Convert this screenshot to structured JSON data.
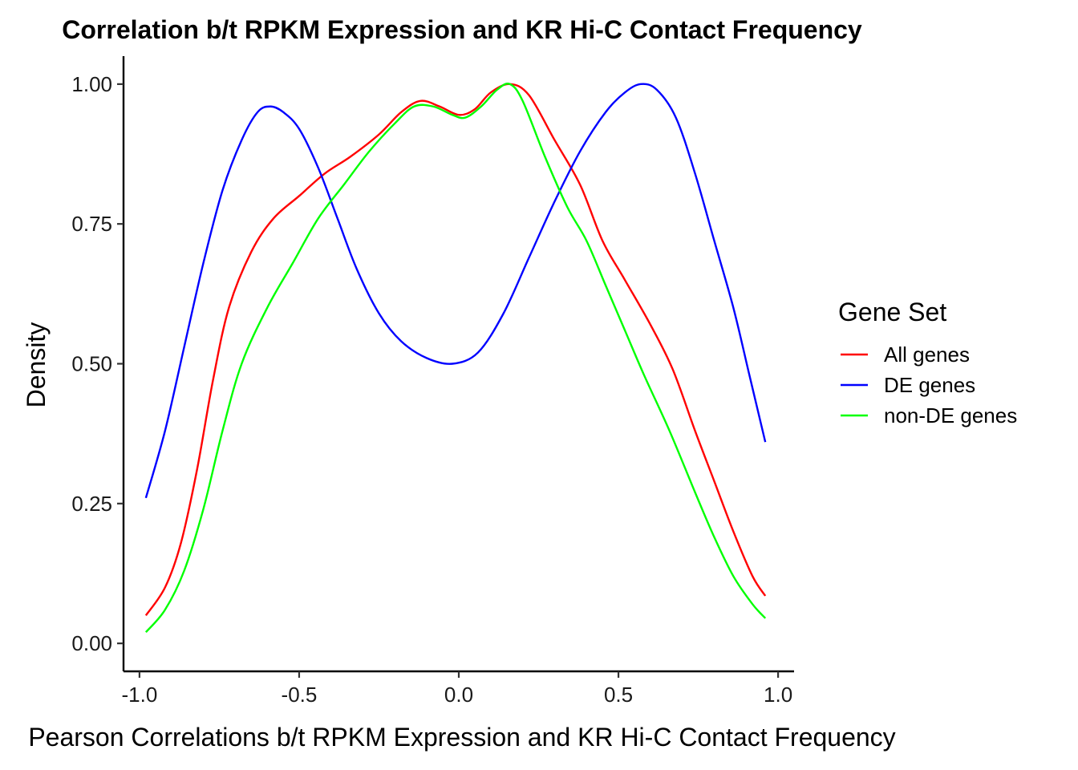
{
  "chart_data": {
    "type": "line",
    "title": "Correlation b/t RPKM Expression and KR Hi-C Contact Frequency",
    "xlabel": "Pearson Correlations b/t RPKM Expression and KR Hi-C Contact Frequency",
    "ylabel": "Density",
    "xlim": [
      -1.05,
      1.05
    ],
    "ylim": [
      -0.05,
      1.05
    ],
    "x_ticks": [
      -1.0,
      -0.5,
      0.0,
      0.5,
      1.0
    ],
    "x_tick_labels": [
      "-1.0",
      "-0.5",
      "0.0",
      "0.5",
      "1.0"
    ],
    "y_ticks": [
      0.0,
      0.25,
      0.5,
      0.75,
      1.0
    ],
    "y_tick_labels": [
      "0.00",
      "0.25",
      "0.50",
      "0.75",
      "1.00"
    ],
    "grid": false,
    "legend": {
      "title": "Gene Set",
      "placement": "right"
    },
    "series": [
      {
        "name": "All genes",
        "color": "#ff0000",
        "points": [
          [
            -0.98,
            0.05
          ],
          [
            -0.92,
            0.1
          ],
          [
            -0.87,
            0.18
          ],
          [
            -0.82,
            0.31
          ],
          [
            -0.77,
            0.47
          ],
          [
            -0.72,
            0.6
          ],
          [
            -0.65,
            0.7
          ],
          [
            -0.58,
            0.76
          ],
          [
            -0.5,
            0.8
          ],
          [
            -0.42,
            0.84
          ],
          [
            -0.34,
            0.87
          ],
          [
            -0.25,
            0.91
          ],
          [
            -0.18,
            0.95
          ],
          [
            -0.12,
            0.97
          ],
          [
            -0.06,
            0.96
          ],
          [
            0.0,
            0.945
          ],
          [
            0.05,
            0.955
          ],
          [
            0.1,
            0.985
          ],
          [
            0.16,
            1.0
          ],
          [
            0.22,
            0.98
          ],
          [
            0.3,
            0.9
          ],
          [
            0.38,
            0.82
          ],
          [
            0.45,
            0.72
          ],
          [
            0.52,
            0.65
          ],
          [
            0.6,
            0.57
          ],
          [
            0.67,
            0.49
          ],
          [
            0.74,
            0.38
          ],
          [
            0.8,
            0.29
          ],
          [
            0.86,
            0.2
          ],
          [
            0.92,
            0.12
          ],
          [
            0.96,
            0.085
          ]
        ]
      },
      {
        "name": "DE genes",
        "color": "#0000ff",
        "points": [
          [
            -0.98,
            0.26
          ],
          [
            -0.92,
            0.38
          ],
          [
            -0.86,
            0.53
          ],
          [
            -0.8,
            0.68
          ],
          [
            -0.74,
            0.81
          ],
          [
            -0.68,
            0.9
          ],
          [
            -0.63,
            0.95
          ],
          [
            -0.59,
            0.96
          ],
          [
            -0.55,
            0.95
          ],
          [
            -0.5,
            0.92
          ],
          [
            -0.44,
            0.85
          ],
          [
            -0.38,
            0.76
          ],
          [
            -0.32,
            0.67
          ],
          [
            -0.25,
            0.59
          ],
          [
            -0.18,
            0.54
          ],
          [
            -0.1,
            0.51
          ],
          [
            -0.02,
            0.5
          ],
          [
            0.06,
            0.52
          ],
          [
            0.14,
            0.59
          ],
          [
            0.22,
            0.69
          ],
          [
            0.3,
            0.79
          ],
          [
            0.38,
            0.88
          ],
          [
            0.46,
            0.95
          ],
          [
            0.52,
            0.985
          ],
          [
            0.57,
            1.0
          ],
          [
            0.62,
            0.99
          ],
          [
            0.68,
            0.94
          ],
          [
            0.74,
            0.84
          ],
          [
            0.8,
            0.72
          ],
          [
            0.86,
            0.6
          ],
          [
            0.91,
            0.48
          ],
          [
            0.96,
            0.36
          ]
        ]
      },
      {
        "name": "non-DE genes",
        "color": "#00ff00",
        "points": [
          [
            -0.98,
            0.02
          ],
          [
            -0.92,
            0.06
          ],
          [
            -0.86,
            0.13
          ],
          [
            -0.8,
            0.24
          ],
          [
            -0.74,
            0.38
          ],
          [
            -0.68,
            0.5
          ],
          [
            -0.6,
            0.6
          ],
          [
            -0.52,
            0.68
          ],
          [
            -0.44,
            0.76
          ],
          [
            -0.36,
            0.82
          ],
          [
            -0.28,
            0.88
          ],
          [
            -0.2,
            0.93
          ],
          [
            -0.14,
            0.96
          ],
          [
            -0.08,
            0.96
          ],
          [
            -0.02,
            0.945
          ],
          [
            0.02,
            0.94
          ],
          [
            0.07,
            0.96
          ],
          [
            0.12,
            0.99
          ],
          [
            0.16,
            1.0
          ],
          [
            0.2,
            0.97
          ],
          [
            0.27,
            0.87
          ],
          [
            0.34,
            0.78
          ],
          [
            0.4,
            0.72
          ],
          [
            0.46,
            0.64
          ],
          [
            0.52,
            0.56
          ],
          [
            0.58,
            0.48
          ],
          [
            0.66,
            0.38
          ],
          [
            0.74,
            0.27
          ],
          [
            0.8,
            0.19
          ],
          [
            0.86,
            0.12
          ],
          [
            0.92,
            0.07
          ],
          [
            0.96,
            0.045
          ]
        ]
      }
    ]
  }
}
